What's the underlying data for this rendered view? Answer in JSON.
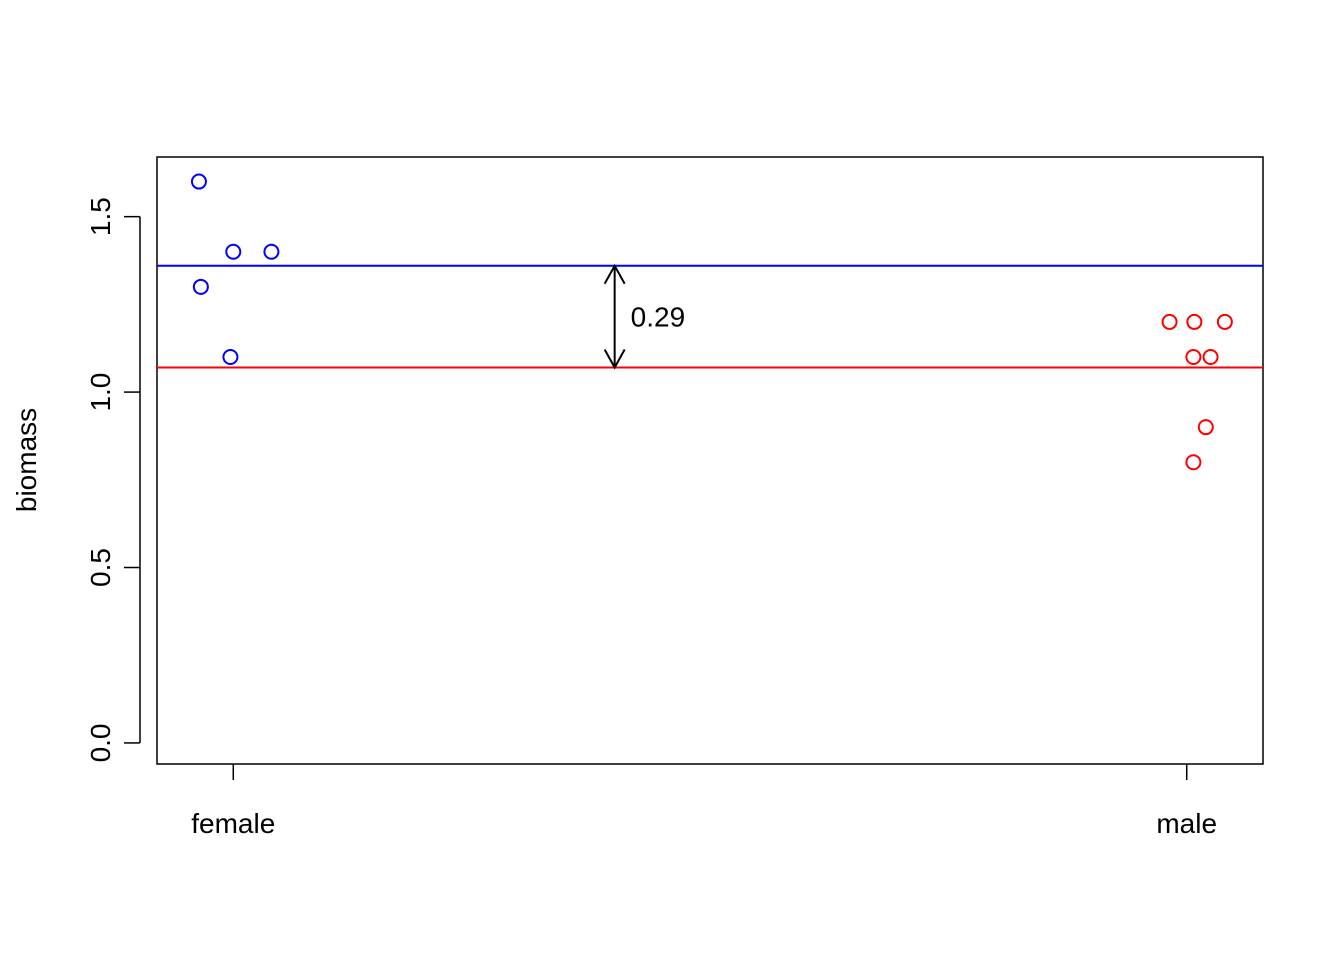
{
  "chart_data": {
    "type": "scatter",
    "title": "",
    "xlabel": "",
    "ylabel": "biomass",
    "categories": [
      "female",
      "male"
    ],
    "ylim": [
      -0.06,
      1.67
    ],
    "yticks": [
      0.0,
      0.5,
      1.0,
      1.5
    ],
    "ytick_labels": [
      "0.0",
      "0.5",
      "1.0",
      "1.5"
    ],
    "grid": false,
    "legend": "none",
    "series": [
      {
        "category": "female",
        "color": "#0000ff",
        "points": [
          {
            "x": 0.964,
            "y": 1.6
          },
          {
            "x": 0.966,
            "y": 1.3
          },
          {
            "x": 0.997,
            "y": 1.1
          },
          {
            "x": 1.0,
            "y": 1.4
          },
          {
            "x": 1.04,
            "y": 1.4
          }
        ],
        "mean": 1.36
      },
      {
        "category": "male",
        "color": "#ff0000",
        "points": [
          {
            "x": 1.982,
            "y": 1.2
          },
          {
            "x": 2.007,
            "y": 1.1
          },
          {
            "x": 2.008,
            "y": 1.2
          },
          {
            "x": 2.007,
            "y": 0.8
          },
          {
            "x": 2.02,
            "y": 0.9
          },
          {
            "x": 2.025,
            "y": 1.1
          },
          {
            "x": 2.04,
            "y": 1.2
          }
        ],
        "mean": 1.07
      }
    ],
    "annotation": {
      "text": "0.29",
      "x": 1.4,
      "y_from": 1.07,
      "y_to": 1.36
    }
  }
}
